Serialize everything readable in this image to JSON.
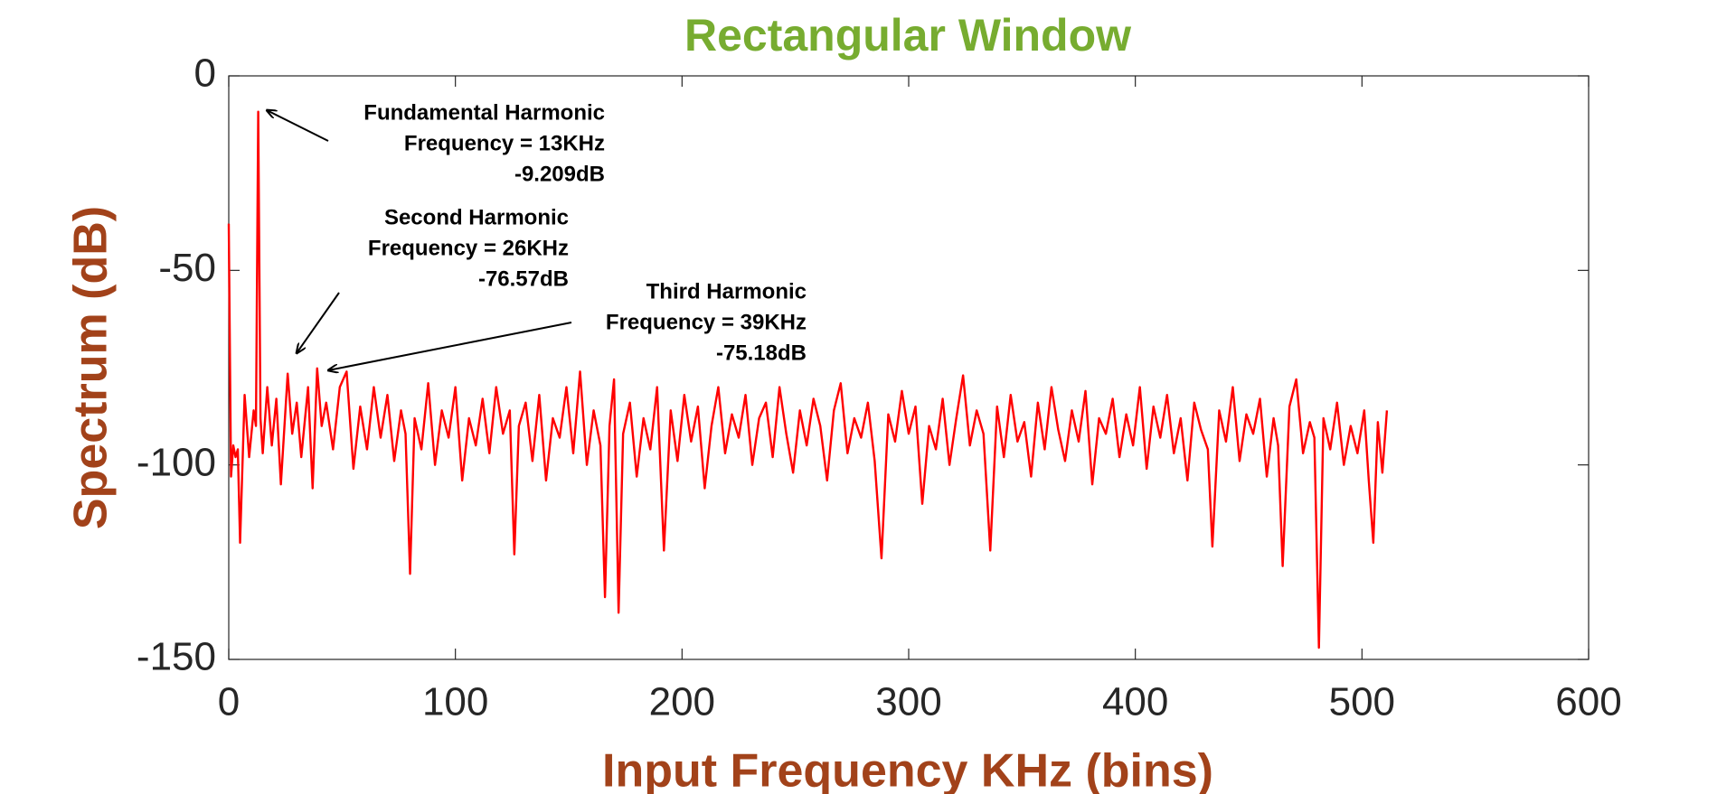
{
  "chart_data": {
    "type": "line",
    "title": "Rectangular Window",
    "x_label": "Input Frequency KHz (bins)",
    "y_label": "Spectrum (dB)",
    "xlim": [
      0,
      600
    ],
    "xticks": [
      0,
      100,
      200,
      300,
      400,
      500,
      600
    ],
    "ylim": [
      -150,
      0
    ],
    "yticks": [
      0,
      -50,
      -100,
      -150
    ],
    "x": [
      0,
      1,
      2,
      3,
      4,
      5,
      7,
      9,
      11,
      12,
      13,
      14,
      15,
      17,
      19,
      21,
      23,
      25,
      26,
      28,
      30,
      32,
      35,
      37,
      39,
      41,
      43,
      46,
      49,
      52,
      55,
      58,
      61,
      64,
      67,
      70,
      73,
      76,
      78,
      80,
      82,
      85,
      88,
      91,
      94,
      97,
      100,
      103,
      106,
      109,
      112,
      115,
      118,
      121,
      124,
      126,
      128,
      131,
      134,
      137,
      140,
      143,
      146,
      149,
      152,
      155,
      158,
      161,
      164,
      166,
      168,
      170,
      172,
      174,
      177,
      180,
      183,
      186,
      189,
      192,
      195,
      198,
      201,
      204,
      207,
      210,
      213,
      216,
      219,
      222,
      225,
      228,
      231,
      234,
      237,
      240,
      243,
      246,
      249,
      252,
      255,
      258,
      261,
      264,
      267,
      270,
      273,
      276,
      279,
      282,
      285,
      288,
      291,
      294,
      297,
      300,
      303,
      306,
      309,
      312,
      315,
      318,
      321,
      324,
      327,
      330,
      333,
      336,
      339,
      342,
      345,
      348,
      351,
      354,
      357,
      360,
      363,
      366,
      369,
      372,
      375,
      378,
      381,
      384,
      387,
      390,
      393,
      396,
      399,
      402,
      405,
      408,
      411,
      414,
      417,
      420,
      423,
      426,
      429,
      432,
      434,
      437,
      440,
      443,
      446,
      449,
      452,
      455,
      458,
      461,
      463,
      465,
      468,
      471,
      474,
      477,
      479,
      481,
      483,
      486,
      489,
      492,
      495,
      498,
      501,
      503,
      505,
      507,
      509,
      511
    ],
    "series": [
      {
        "color": "#ff0000",
        "values": [
          -38,
          -103,
          -95,
          -98,
          -96,
          -120,
          -82,
          -98,
          -86,
          -90,
          -9.209,
          -88,
          -97,
          -80,
          -95,
          -83,
          -105,
          -86,
          -76.57,
          -92,
          -84,
          -98,
          -80,
          -106,
          -75.18,
          -90,
          -84,
          -96,
          -80,
          -76,
          -101,
          -85,
          -96,
          -80,
          -93,
          -82,
          -99,
          -86,
          -92,
          -128,
          -88,
          -96,
          -79,
          -100,
          -86,
          -93,
          -80,
          -104,
          -88,
          -95,
          -83,
          -97,
          -80,
          -92,
          -86,
          -123,
          -90,
          -84,
          -99,
          -82,
          -104,
          -88,
          -93,
          -80,
          -97,
          -76,
          -100,
          -86,
          -95,
          -134,
          -90,
          -78,
          -138,
          -92,
          -84,
          -103,
          -88,
          -96,
          -80,
          -122,
          -86,
          -99,
          -82,
          -94,
          -85,
          -106,
          -90,
          -80,
          -97,
          -87,
          -93,
          -82,
          -100,
          -88,
          -84,
          -98,
          -80,
          -92,
          -102,
          -86,
          -95,
          -83,
          -90,
          -104,
          -86,
          -79,
          -97,
          -88,
          -93,
          -84,
          -99,
          -124,
          -87,
          -94,
          -81,
          -92,
          -85,
          -110,
          -90,
          -96,
          -83,
          -100,
          -88,
          -77,
          -95,
          -86,
          -92,
          -122,
          -85,
          -98,
          -82,
          -94,
          -89,
          -103,
          -84,
          -96,
          -80,
          -91,
          -99,
          -86,
          -94,
          -81,
          -105,
          -88,
          -92,
          -83,
          -98,
          -87,
          -95,
          -80,
          -101,
          -85,
          -93,
          -82,
          -97,
          -88,
          -104,
          -84,
          -91,
          -96,
          -121,
          -86,
          -94,
          -80,
          -99,
          -87,
          -92,
          -83,
          -103,
          -88,
          -95,
          -126,
          -85,
          -78,
          -97,
          -89,
          -93,
          -147,
          -88,
          -96,
          -84,
          -100,
          -90,
          -97,
          -86,
          -104,
          -120,
          -89,
          -102,
          -86
        ]
      }
    ],
    "annotations": [
      {
        "lines": [
          "Fundamental Harmonic",
          "Frequency = 13KHz",
          "-9.209dB"
        ]
      },
      {
        "lines": [
          "Second Harmonic",
          "Frequency = 26KHz",
          "-76.57dB"
        ]
      },
      {
        "lines": [
          "Third Harmonic",
          "Frequency = 39KHz",
          "-75.18dB"
        ]
      }
    ]
  }
}
